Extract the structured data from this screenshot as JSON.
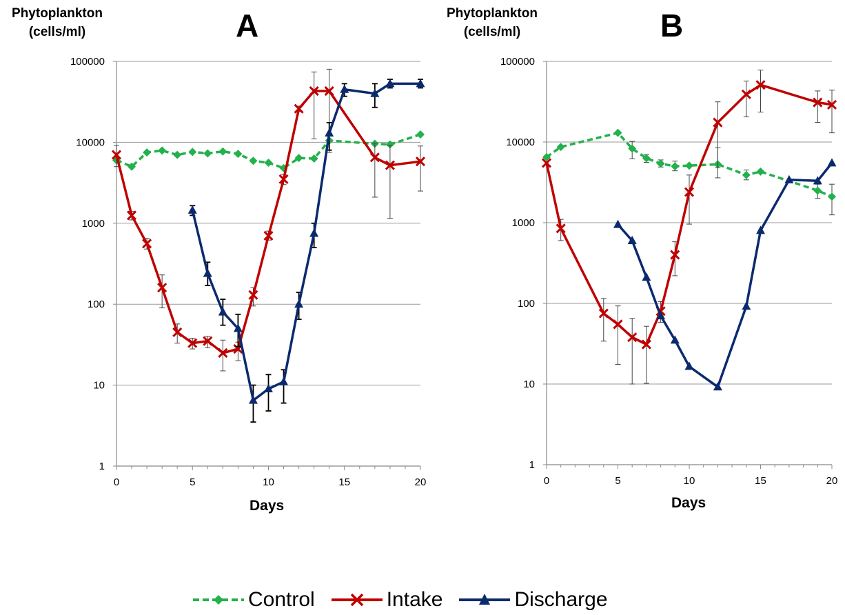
{
  "figure": {
    "legend": [
      {
        "label": "Control",
        "color": "#22b14c",
        "dash": true,
        "marker": "diamond"
      },
      {
        "label": "Intake",
        "color": "#c00000",
        "dash": false,
        "marker": "x"
      },
      {
        "label": "Discharge",
        "color": "#0b2a6e",
        "dash": false,
        "marker": "triangle"
      }
    ]
  },
  "chart_data": [
    {
      "type": "line",
      "title": "A",
      "ylabel_line1": "Phytoplankton",
      "ylabel_line2": "(cells/ml)",
      "xlabel": "Days",
      "y_scale": "log",
      "ylim": [
        1,
        100000
      ],
      "xlim": [
        0,
        20
      ],
      "y_ticks": [
        "1",
        "10",
        "100",
        "1000",
        "10000",
        "100000"
      ],
      "x_ticks": [
        "0",
        "5",
        "10",
        "15",
        "20"
      ],
      "grid": "horizontal",
      "series": [
        {
          "name": "Control",
          "color": "#22b14c",
          "x": [
            0,
            1,
            2,
            3,
            4,
            5,
            6,
            7,
            8,
            9,
            10,
            11,
            12,
            13,
            14,
            17,
            18,
            20
          ],
          "y": [
            6000,
            5000,
            7500,
            7900,
            7000,
            7600,
            7300,
            7700,
            7200,
            5900,
            5600,
            4800,
            6400,
            6300,
            10500,
            9600,
            9400,
            12500
          ]
        },
        {
          "name": "Intake",
          "color": "#c00000",
          "x": [
            0,
            1,
            2,
            3,
            4,
            5,
            6,
            7,
            8,
            9,
            10,
            11,
            12,
            13,
            14,
            17,
            18,
            20
          ],
          "y": [
            7000,
            1250,
            560,
            160,
            45,
            33,
            35,
            25,
            28,
            130,
            700,
            3500,
            26000,
            43000,
            43000,
            6500,
            5200,
            5800
          ],
          "err_low": [
            5000,
            1100,
            480,
            90,
            33,
            28,
            29,
            15,
            20,
            95,
            620,
            3000,
            24000,
            11000,
            7500,
            2100,
            1150,
            2500
          ],
          "err_high": [
            9200,
            1400,
            650,
            230,
            57,
            38,
            40,
            36,
            34,
            160,
            800,
            4000,
            28000,
            74000,
            80000,
            9800,
            9200,
            9000
          ]
        },
        {
          "name": "Discharge",
          "color": "#0b2a6e",
          "x": [
            5,
            6,
            7,
            8,
            9,
            10,
            11,
            12,
            13,
            14,
            15,
            17,
            18,
            20
          ],
          "y": [
            1450,
            240,
            80,
            50,
            6.5,
            9,
            11,
            100,
            750,
            13000,
            45000,
            40000,
            53000,
            53000
          ],
          "err_low": [
            1250,
            170,
            55,
            30,
            3.5,
            4.8,
            6,
            65,
            500,
            8000,
            37000,
            27000,
            47000,
            47000
          ],
          "err_high": [
            1650,
            330,
            115,
            75,
            10,
            13.5,
            15.5,
            140,
            1000,
            17500,
            53000,
            53000,
            60000,
            60000
          ]
        }
      ]
    },
    {
      "type": "line",
      "title": "B",
      "ylabel_line1": "Phytoplankton",
      "ylabel_line2": "(cells/ml)",
      "xlabel": "Days",
      "y_scale": "log",
      "ylim": [
        1,
        100000
      ],
      "xlim": [
        0,
        20
      ],
      "y_ticks": [
        "1",
        "10",
        "100",
        "1000",
        "10000",
        "100000"
      ],
      "x_ticks": [
        "0",
        "5",
        "10",
        "15",
        "20"
      ],
      "grid": "horizontal",
      "series": [
        {
          "name": "Control",
          "color": "#22b14c",
          "x": [
            0,
            1,
            5,
            6,
            7,
            8,
            9,
            10,
            12,
            14,
            15,
            19,
            20
          ],
          "y": [
            6500,
            8700,
            13000,
            8300,
            6300,
            5400,
            5000,
            5100,
            5300,
            3900,
            4300,
            2500,
            2100
          ],
          "err_low": [
            null,
            null,
            null,
            6200,
            5600,
            4900,
            4400,
            null,
            3600,
            3400,
            null,
            2000,
            1250
          ],
          "err_high": [
            null,
            null,
            null,
            10200,
            7000,
            6000,
            5800,
            null,
            8500,
            4500,
            null,
            3000,
            3000
          ]
        },
        {
          "name": "Intake",
          "color": "#c00000",
          "x": [
            0,
            1,
            4,
            5,
            6,
            7,
            8,
            9,
            10,
            12,
            14,
            15,
            19,
            20
          ],
          "y": [
            5500,
            850,
            75,
            55,
            38,
            31,
            80,
            400,
            2400,
            17500,
            39000,
            51000,
            31000,
            29000
          ],
          "err_low": [
            null,
            600,
            34,
            17.5,
            10,
            10.2,
            58,
            220,
            960,
            4800,
            20500,
            23500,
            17500,
            13000
          ],
          "err_high": [
            null,
            1100,
            115,
            93,
            65,
            52,
            105,
            580,
            3900,
            31500,
            57000,
            78000,
            43000,
            44000
          ]
        },
        {
          "name": "Discharge",
          "color": "#0b2a6e",
          "x": [
            5,
            6,
            7,
            8,
            9,
            10,
            12,
            14,
            15,
            17,
            19,
            20
          ],
          "y": [
            950,
            600,
            210,
            70,
            35,
            16.5,
            9.2,
            92,
            800,
            3400,
            3300,
            5500
          ]
        }
      ]
    }
  ]
}
